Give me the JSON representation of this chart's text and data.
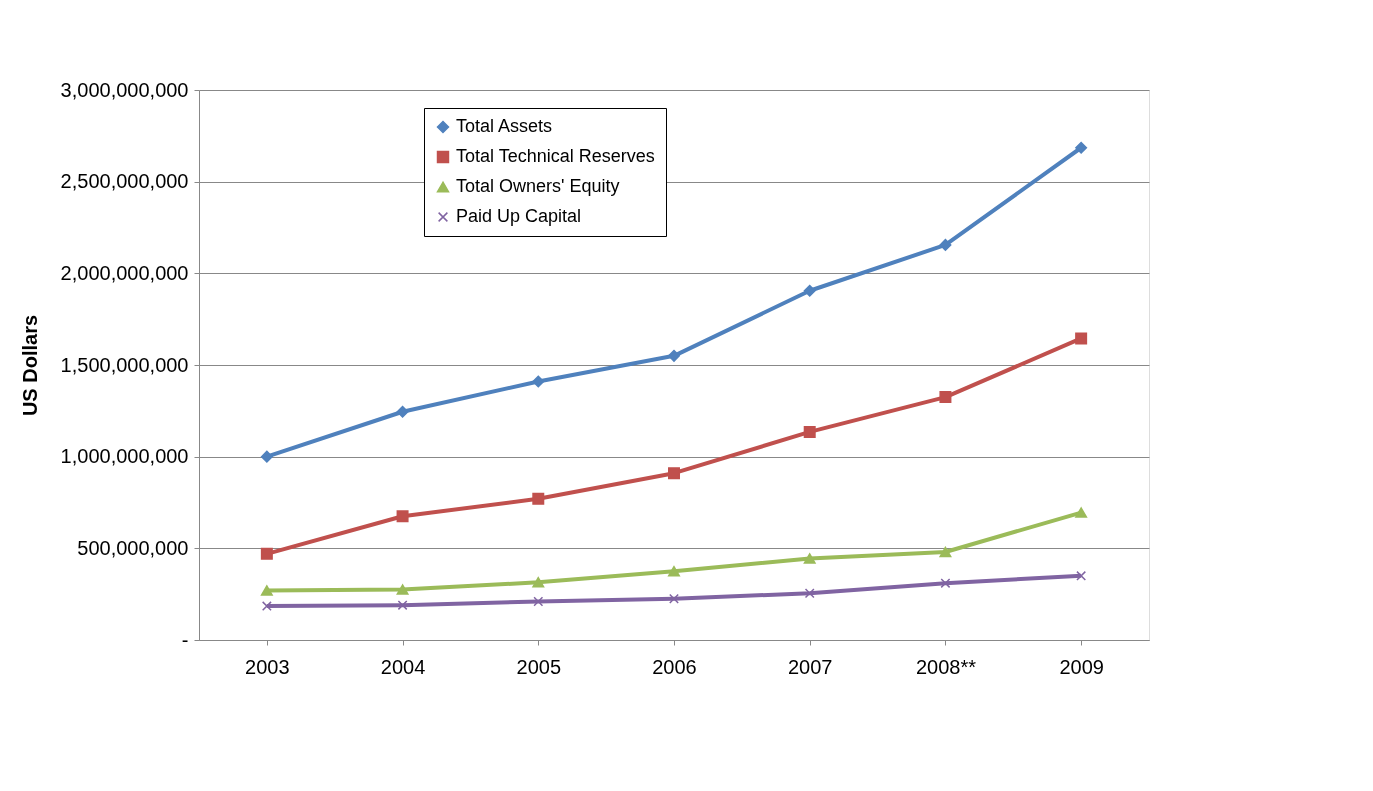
{
  "chart_data": {
    "type": "line",
    "ylabel": "US Dollars",
    "categories": [
      "2003",
      "2004",
      "2005",
      "2006",
      "2007",
      "2008**",
      "2009"
    ],
    "series": [
      {
        "name": "Total Assets",
        "color": "#4f81bd",
        "marker": "diamond",
        "values": [
          1000000000,
          1245000000,
          1410000000,
          1550000000,
          1905000000,
          2155000000,
          2685000000
        ]
      },
      {
        "name": "Total Technical Reserves",
        "color": "#c0504d",
        "marker": "square",
        "values": [
          470000000,
          675000000,
          770000000,
          910000000,
          1135000000,
          1325000000,
          1645000000
        ]
      },
      {
        "name": "Total Owners' Equity",
        "color": "#9bbb59",
        "marker": "triangle",
        "values": [
          270000000,
          275000000,
          315000000,
          375000000,
          445000000,
          480000000,
          695000000
        ]
      },
      {
        "name": "Paid Up Capital",
        "color": "#8064a2",
        "marker": "cross",
        "values": [
          185000000,
          190000000,
          210000000,
          225000000,
          255000000,
          310000000,
          350000000
        ]
      }
    ],
    "ylim": [
      0,
      3000000000
    ],
    "yticks": [
      {
        "value": 0,
        "label": "-"
      },
      {
        "value": 500000000,
        "label": "500,000,000"
      },
      {
        "value": 1000000000,
        "label": "1,000,000,000"
      },
      {
        "value": 1500000000,
        "label": "1,500,000,000"
      },
      {
        "value": 2000000000,
        "label": "2,000,000,000"
      },
      {
        "value": 2500000000,
        "label": "2,500,000,000"
      },
      {
        "value": 3000000000,
        "label": "3,000,000,000"
      }
    ],
    "grid": "y",
    "legend": "top left",
    "line_style": "solid"
  }
}
